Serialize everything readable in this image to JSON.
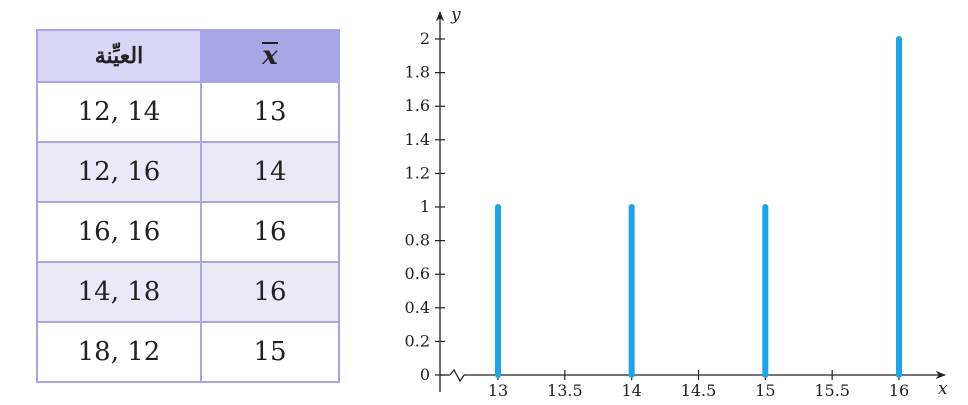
{
  "table": {
    "headers": [
      "العيِّنة",
      "x"
    ],
    "rows": [
      {
        "sample": "12, 14",
        "mean": "13"
      },
      {
        "sample": "12, 16",
        "mean": "14"
      },
      {
        "sample": "16, 16",
        "mean": "16"
      },
      {
        "sample": "14, 18",
        "mean": "16"
      },
      {
        "sample": "18, 12",
        "mean": "15"
      }
    ]
  },
  "chart_data": {
    "type": "bar",
    "x": [
      13,
      14,
      15,
      16
    ],
    "values": [
      1,
      1,
      1,
      2
    ],
    "xlabel": "x",
    "ylabel": "y",
    "xlim": [
      12.6,
      16.25
    ],
    "ylim": [
      0,
      2.1
    ],
    "xticks": [
      "13",
      "13.5",
      "14",
      "14.5",
      "15",
      "15.5",
      "16"
    ],
    "yticks": [
      "0",
      "0.2",
      "0.4",
      "0.6",
      "0.8",
      "1",
      "1.2",
      "1.4",
      "1.6",
      "1.8",
      "2"
    ],
    "grid": false,
    "bar_color": "#1aa6e8"
  }
}
